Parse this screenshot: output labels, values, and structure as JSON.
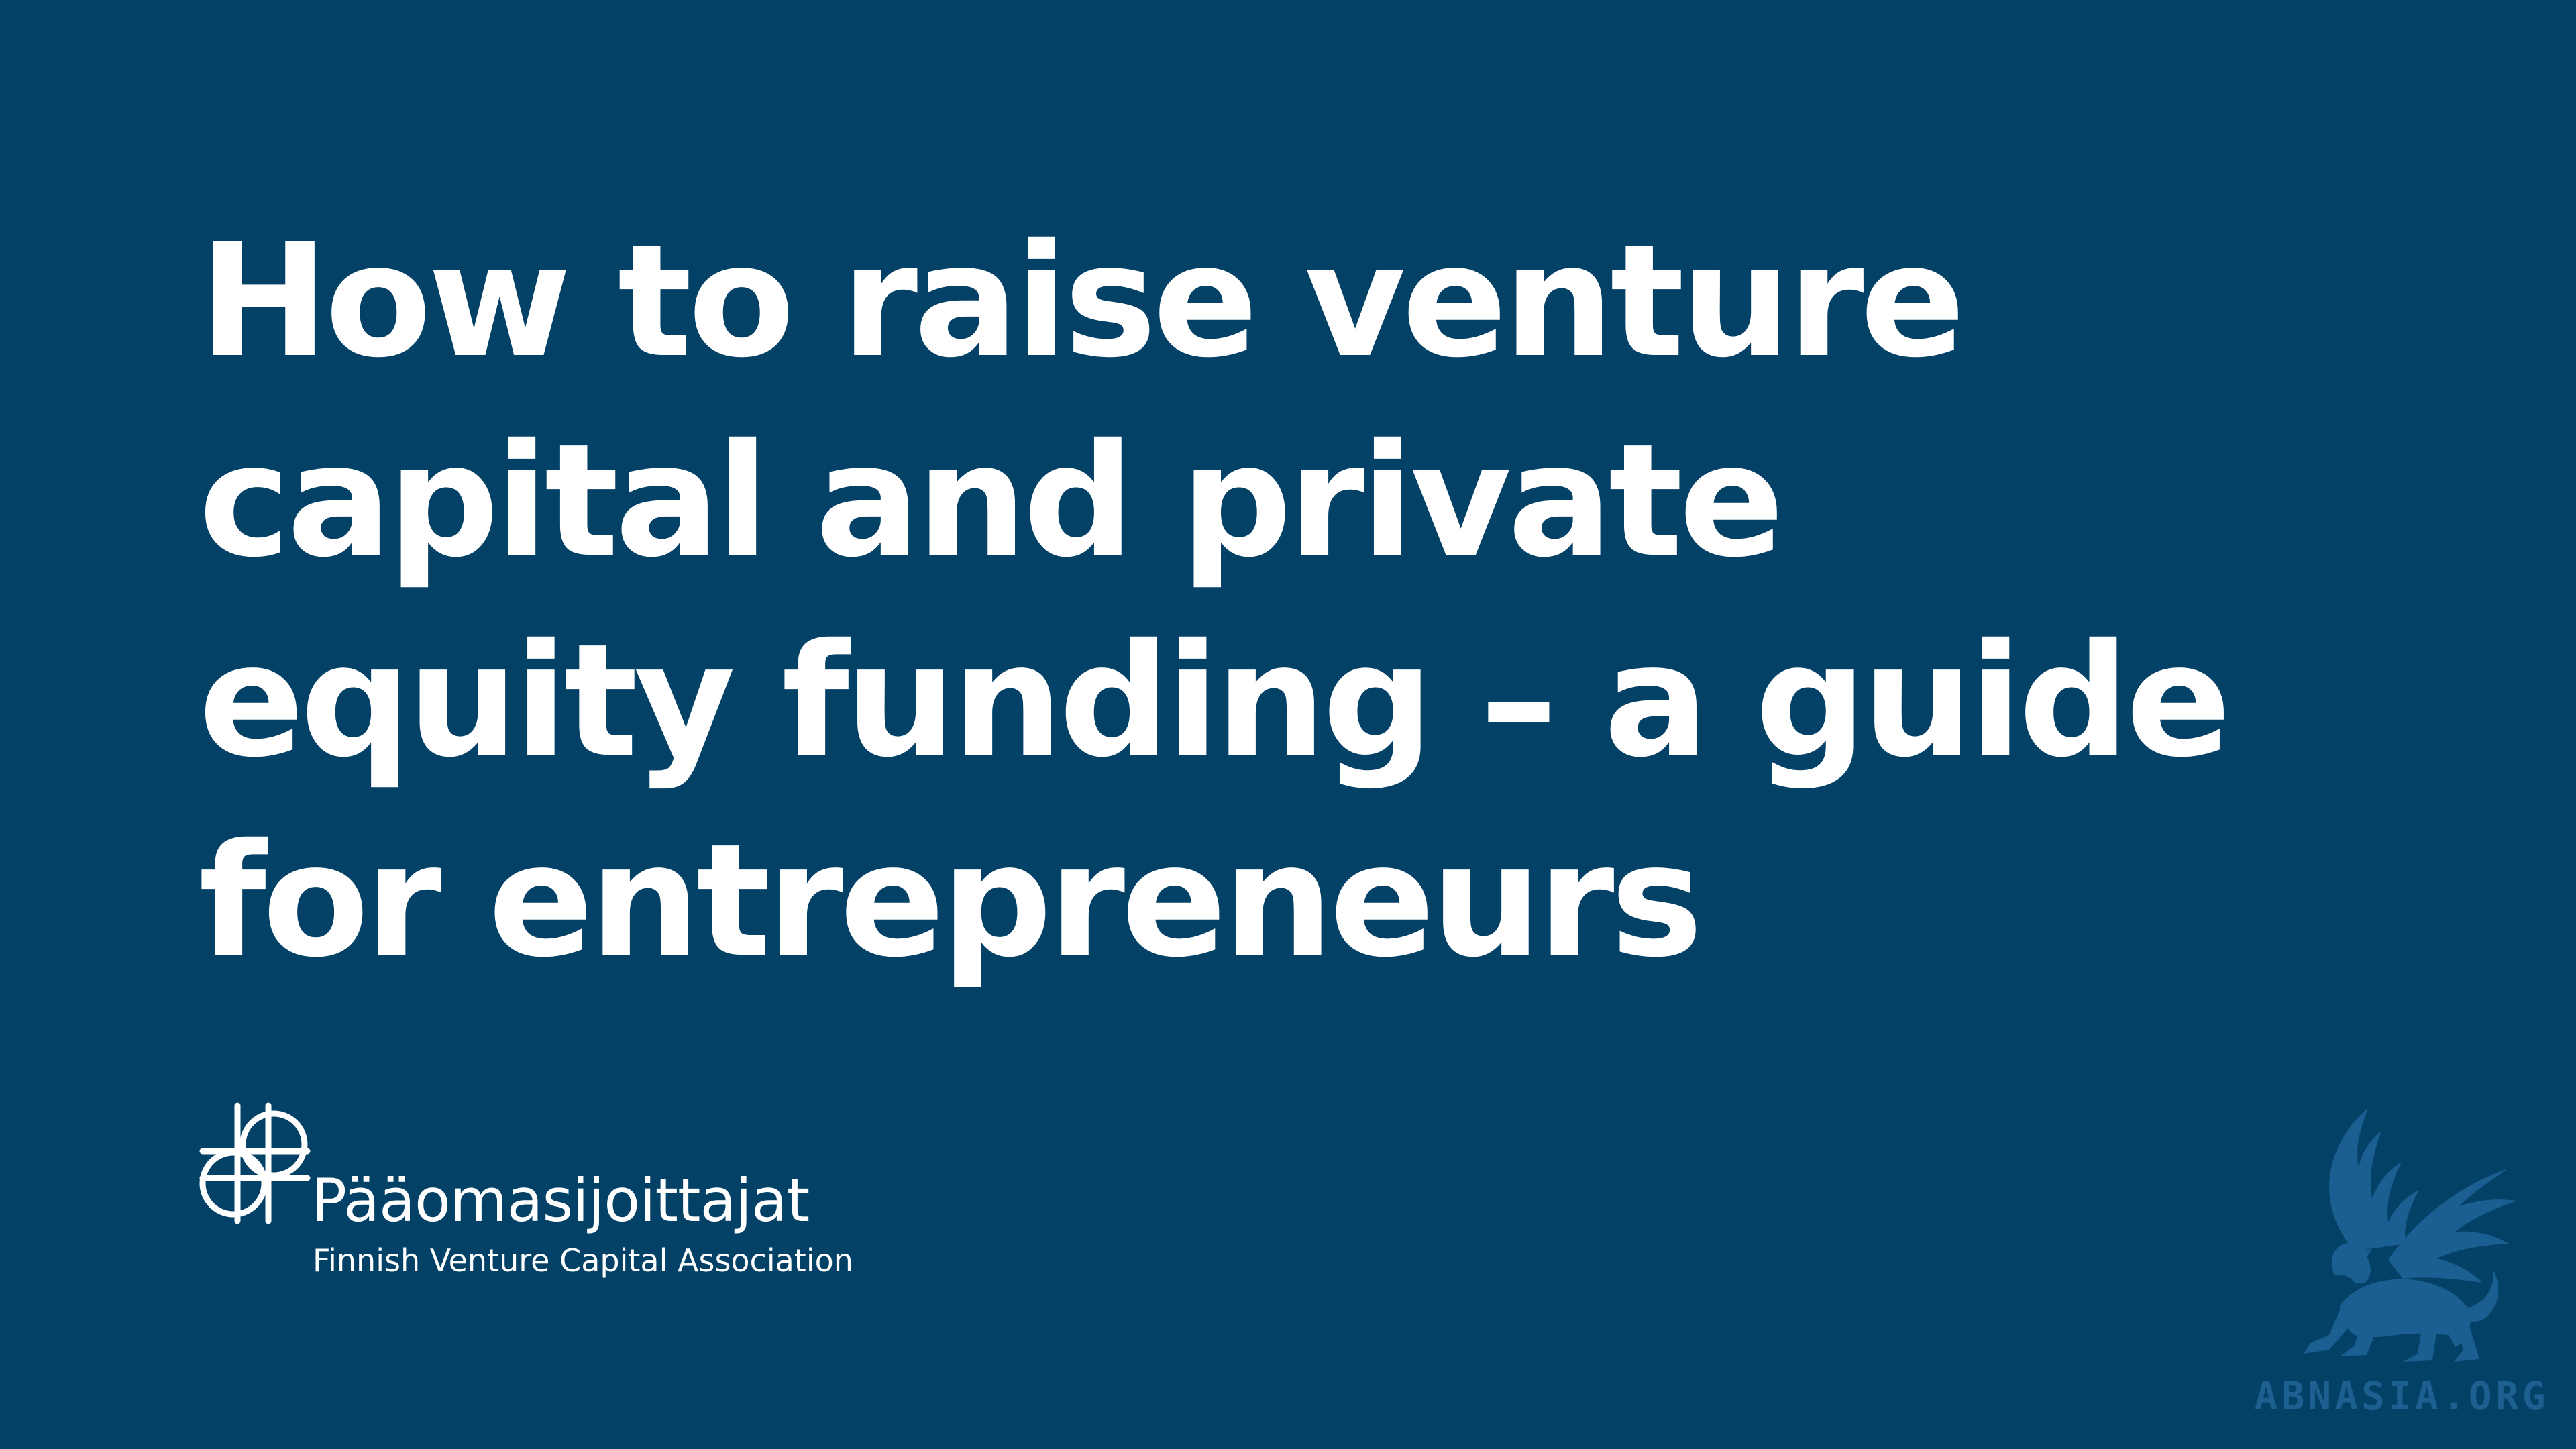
{
  "slide": {
    "background_color": "#034166",
    "text_color": "#ffffff",
    "title_lines": [
      "How to raise venture",
      "capital and private",
      "equity funding – a guide",
      "for entrepreneurs"
    ]
  },
  "logo": {
    "icon": "globe-cross-logo-icon",
    "name": "Pääomasijoittajat",
    "tagline": "Finnish Venture Capital Association"
  },
  "watermark": {
    "icon": "griffin-emblem-icon",
    "text": "ABNASIA.ORG",
    "color": "#1d5f90"
  }
}
